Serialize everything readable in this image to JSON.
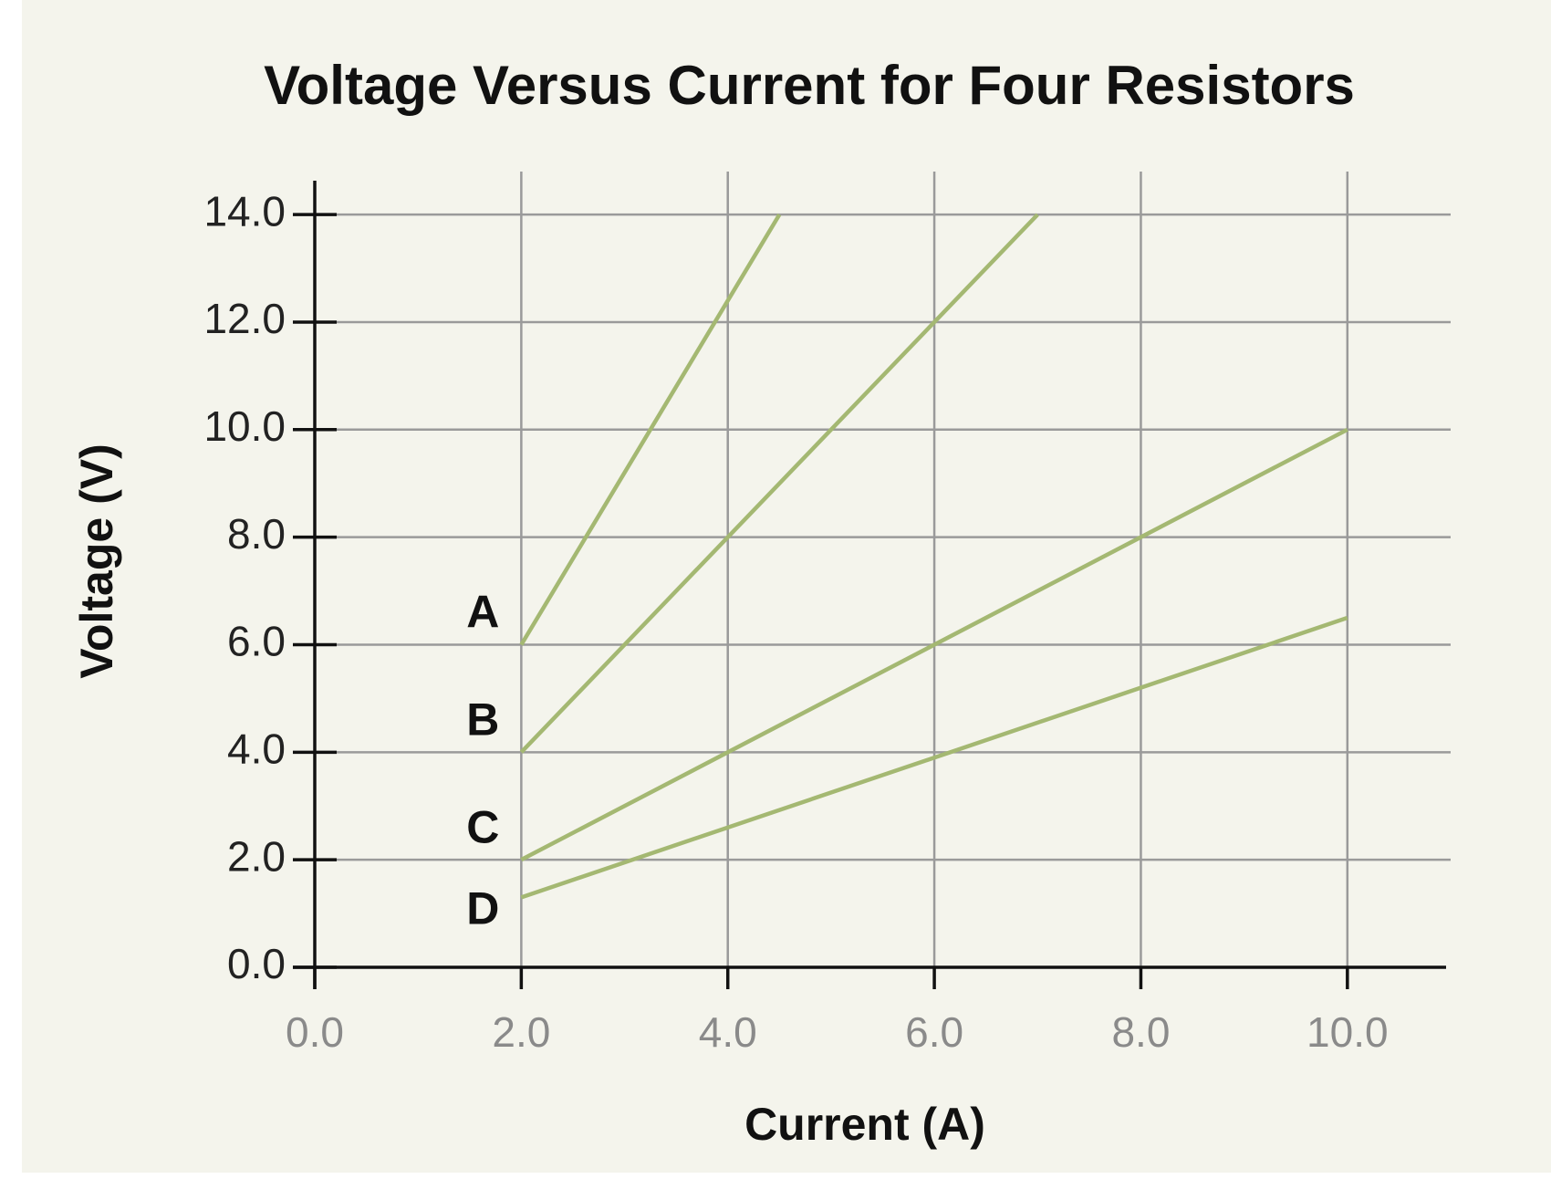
{
  "chart_data": {
    "type": "line",
    "title": "Voltage Versus Current for Four Resistors",
    "x_label": "Current (A)",
    "y_label": "Voltage (V)",
    "series": [
      {
        "name": "A",
        "color": "#a4b872",
        "x": [
          2,
          4.5
        ],
        "values": [
          6,
          14
        ]
      },
      {
        "name": "B",
        "color": "#a4b872",
        "x": [
          2,
          7
        ],
        "values": [
          4,
          14
        ]
      },
      {
        "name": "C",
        "color": "#a4b872",
        "x": [
          2,
          10
        ],
        "values": [
          2,
          10
        ]
      },
      {
        "name": "D",
        "color": "#a4b872",
        "x": [
          2,
          10
        ],
        "values": [
          1.3,
          6.5
        ]
      }
    ],
    "xlim": [
      0,
      11
    ],
    "ylim": [
      0,
      14.8
    ],
    "xticks": [
      {
        "value": 0,
        "label": "0.0"
      },
      {
        "value": 2,
        "label": "2.0"
      },
      {
        "value": 4,
        "label": "4.0"
      },
      {
        "value": 6,
        "label": "6.0"
      },
      {
        "value": 8,
        "label": "8.0"
      },
      {
        "value": 10,
        "label": "10.0"
      }
    ],
    "yticks": [
      {
        "value": 0,
        "label": "0.0"
      },
      {
        "value": 2,
        "label": "2.0"
      },
      {
        "value": 4,
        "label": "4.0"
      },
      {
        "value": 6,
        "label": "6.0"
      },
      {
        "value": 8,
        "label": "8.0"
      },
      {
        "value": 10,
        "label": "10.0"
      },
      {
        "value": 12,
        "label": "12.0"
      },
      {
        "value": 14,
        "label": "14.0"
      }
    ],
    "grid": true
  }
}
